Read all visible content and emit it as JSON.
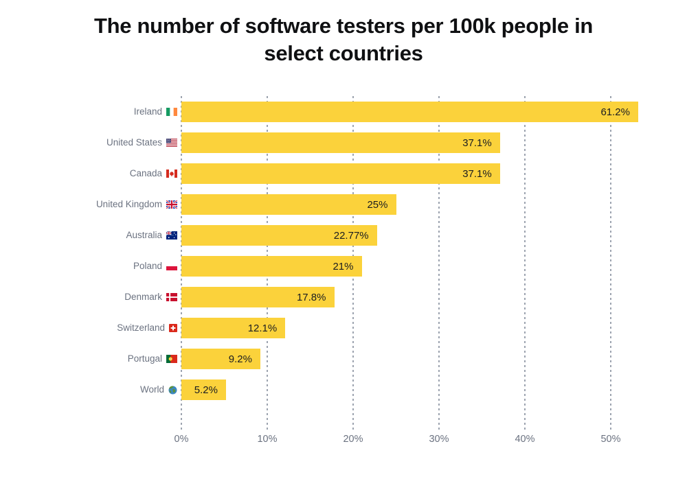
{
  "chart_data": {
    "type": "bar",
    "orientation": "horizontal",
    "title": "The number of software testers per 100k people in select countries",
    "title_lines": [
      "The number of software testers per 100k people in",
      "select countries"
    ],
    "rows": [
      {
        "country": "Ireland",
        "flag": "ireland",
        "value": 61.2,
        "value_label": "61.2%"
      },
      {
        "country": "United States",
        "flag": "united-states",
        "value": 37.1,
        "value_label": "37.1%"
      },
      {
        "country": "Canada",
        "flag": "canada",
        "value": 37.1,
        "value_label": "37.1%"
      },
      {
        "country": "United Kingdom",
        "flag": "united-kingdom",
        "value": 25,
        "value_label": "25%"
      },
      {
        "country": "Australia",
        "flag": "australia",
        "value": 22.77,
        "value_label": "22.77%"
      },
      {
        "country": "Poland",
        "flag": "poland",
        "value": 21,
        "value_label": "21%"
      },
      {
        "country": "Denmark",
        "flag": "denmark",
        "value": 17.8,
        "value_label": "17.8%"
      },
      {
        "country": "Switzerland",
        "flag": "switzerland",
        "value": 12.1,
        "value_label": "12.1%"
      },
      {
        "country": "Portugal",
        "flag": "portugal",
        "value": 9.2,
        "value_label": "9.2%"
      },
      {
        "country": "World",
        "flag": "world",
        "value": 5.2,
        "value_label": "5.2%"
      }
    ],
    "x_axis": {
      "tick_labels": [
        "0%",
        "10%",
        "20%",
        "30%",
        "40%",
        "50%"
      ],
      "tick_values": [
        0,
        10,
        20,
        30,
        40,
        50
      ]
    },
    "xlim": [
      0,
      53.2
    ],
    "grid": "vertical-dashed",
    "legend": "none",
    "colors": {
      "bar": "#FBD23B",
      "grid": "#9CA3AF",
      "country_label": "#6B7280",
      "value_label": "#1A1C20",
      "title": "#0F1012",
      "background": "#FFFFFF"
    }
  }
}
